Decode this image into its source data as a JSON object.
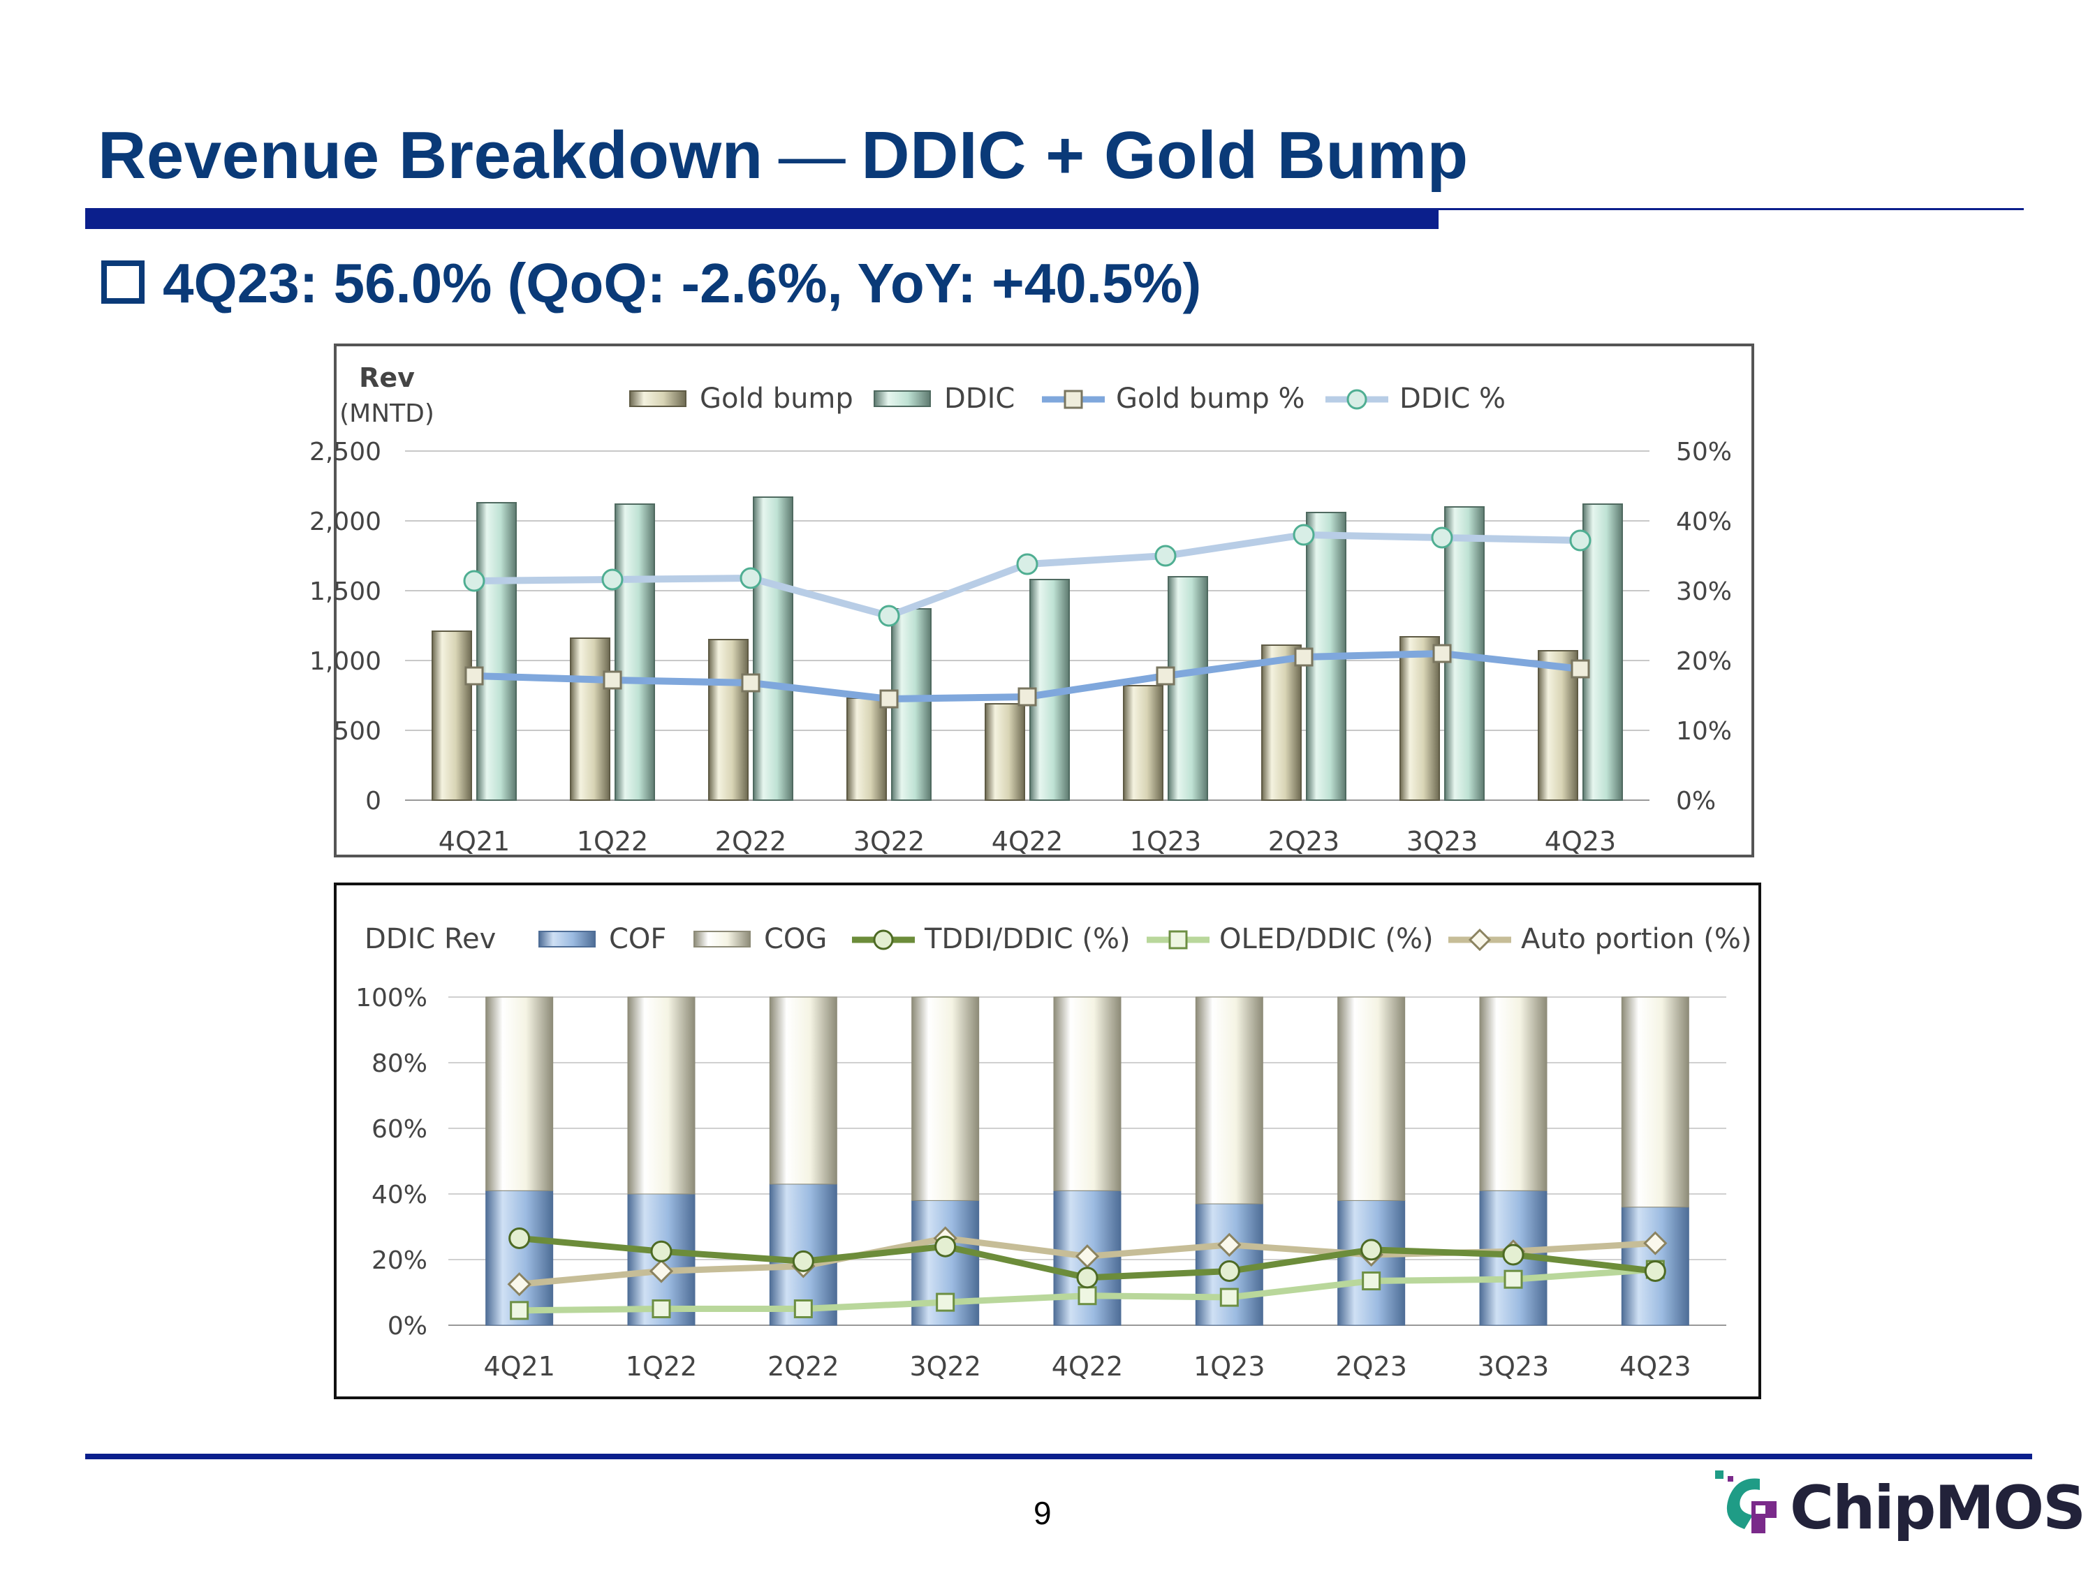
{
  "header": {
    "title_left": "Revenue Breakdown",
    "title_dash": "—",
    "title_right": "DDIC + Gold Bump",
    "subtitle": "4Q23: 56.0% (QoQ: -2.6%, YoY: +40.5%)"
  },
  "chart_data": [
    {
      "type": "bar",
      "title": "",
      "ylabel": "Rev",
      "ylabel_unit": "(MNTD)",
      "ylim": [
        0,
        2500
      ],
      "y_ticks": [
        "0",
        "500",
        "1,000",
        "1,500",
        "2,000",
        "2,500"
      ],
      "y2lim": [
        0,
        50
      ],
      "y2_ticks": [
        "0%",
        "10%",
        "20%",
        "30%",
        "40%",
        "50%"
      ],
      "categories": [
        "4Q21",
        "1Q22",
        "2Q22",
        "3Q22",
        "4Q22",
        "1Q23",
        "2Q23",
        "3Q23",
        "4Q23"
      ],
      "legend": [
        "Gold bump",
        "DDIC",
        "Gold bump %",
        "DDIC %"
      ],
      "series": [
        {
          "name": "Gold bump",
          "kind": "bar",
          "axis": "left",
          "values": [
            1210,
            1160,
            1150,
            730,
            690,
            820,
            1110,
            1170,
            1070
          ]
        },
        {
          "name": "DDIC",
          "kind": "bar",
          "axis": "left",
          "values": [
            2130,
            2120,
            2170,
            1370,
            1580,
            1600,
            2060,
            2100,
            2120
          ]
        },
        {
          "name": "Gold bump %",
          "kind": "line",
          "axis": "right",
          "values": [
            17.8,
            17.2,
            16.8,
            14.5,
            14.8,
            17.8,
            20.5,
            21.0,
            18.8
          ]
        },
        {
          "name": "DDIC %",
          "kind": "line",
          "axis": "right",
          "values": [
            31.4,
            31.6,
            31.8,
            26.4,
            33.8,
            35.0,
            38.0,
            37.6,
            37.2
          ]
        }
      ],
      "colors": {
        "gold_bump": "#dcd9bf",
        "ddic": "#c7e8dc",
        "gold_bump_pct": "#7fa7dc",
        "ddic_pct": "#b6cce4"
      }
    },
    {
      "type": "bar",
      "title": "DDIC Rev",
      "ylim": [
        0,
        100
      ],
      "y_ticks": [
        "0%",
        "20%",
        "40%",
        "60%",
        "80%",
        "100%"
      ],
      "categories": [
        "4Q21",
        "1Q22",
        "2Q22",
        "3Q22",
        "4Q22",
        "1Q23",
        "2Q23",
        "3Q23",
        "4Q23"
      ],
      "legend": [
        "COF",
        "COG",
        "TDDI/DDIC (%)",
        "OLED/DDIC (%)",
        "Auto portion (%)"
      ],
      "series": [
        {
          "name": "COF",
          "kind": "stacked-bar",
          "values": [
            41,
            40,
            43,
            38,
            41,
            37,
            38,
            41,
            36
          ]
        },
        {
          "name": "COG",
          "kind": "stacked-bar",
          "values": [
            59,
            60,
            57,
            62,
            59,
            63,
            62,
            59,
            64
          ]
        },
        {
          "name": "TDDI/DDIC (%)",
          "kind": "line",
          "values": [
            26.5,
            22.5,
            19.5,
            24.0,
            14.5,
            16.5,
            23.0,
            21.5,
            16.5
          ]
        },
        {
          "name": "OLED/DDIC (%)",
          "kind": "line",
          "values": [
            4.5,
            5.0,
            5.0,
            7.0,
            9.0,
            8.5,
            13.5,
            14.0,
            17.0
          ]
        },
        {
          "name": "Auto portion (%)",
          "kind": "line",
          "values": [
            12.5,
            16.5,
            18.0,
            26.5,
            21.0,
            24.5,
            21.5,
            22.5,
            25.0
          ]
        }
      ],
      "colors": {
        "cof": "#9cbbe1",
        "cog": "#f7f6e8",
        "tddi": "#6c8c3a",
        "oled": "#b9d79b",
        "auto": "#c6bd97"
      }
    }
  ],
  "footer": {
    "page_number": "9",
    "logo_text": "ChipMOS"
  }
}
